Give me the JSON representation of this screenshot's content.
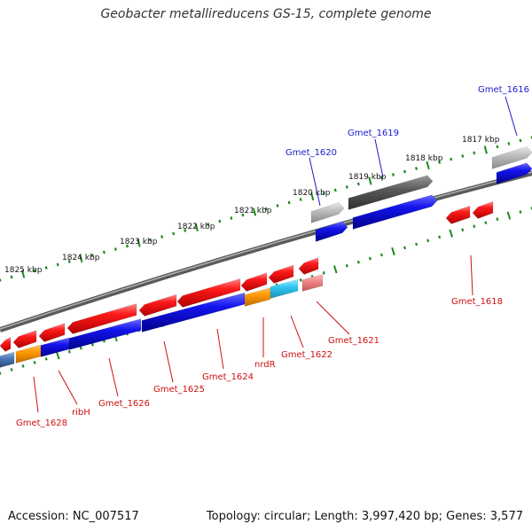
{
  "header": {
    "title": "Geobacter metallireducens GS-15, complete genome"
  },
  "footer": {
    "accession": "Accession: NC_007517",
    "summary": "Topology: circular; Length: 3,997,420 bp; Genes: 3,577"
  },
  "colors": {
    "forward_gene": "#1010e0",
    "reverse_gene": "#ee1111",
    "forward_label": "#1a1acc",
    "reverse_label": "#cc1111",
    "orange_gene": "#ff9900",
    "cyan_gene": "#33ccee",
    "tick": "#1f8a1f",
    "backbone": "#808080"
  },
  "scale_labels": [
    "1825 kbp",
    "1824 kbp",
    "1823 kbp",
    "1822 kbp",
    "1821 kbp",
    "1820 kbp",
    "1819 kbp",
    "1818 kbp",
    "1817 kbp"
  ],
  "gene_labels": {
    "forward": [
      "Gmet_1616",
      "Gmet_1619",
      "Gmet_1620"
    ],
    "reverse": [
      "Gmet_1618",
      "Gmet_1621",
      "Gmet_1622",
      "nrdR",
      "Gmet_1624",
      "Gmet_1625",
      "Gmet_1626",
      "ribH",
      "Gmet_1628"
    ]
  }
}
